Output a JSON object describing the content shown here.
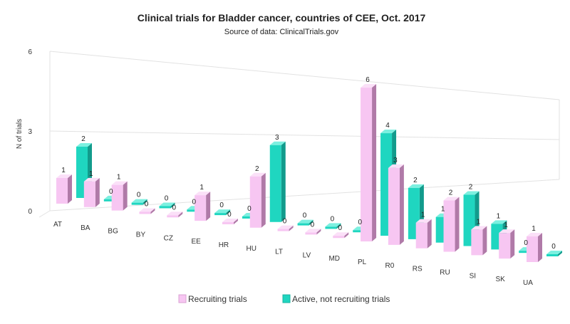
{
  "chart_data": {
    "type": "bar",
    "title": "Clinical trials for Bladder cancer, countries of CEE, Oct. 2017",
    "subtitle": "Source of data: ClinicalTrials.gov",
    "ylabel": "N of trials",
    "xlabel": "",
    "ylim": [
      0,
      6
    ],
    "yticks": [
      0,
      3,
      6
    ],
    "grid": true,
    "legend_position": "bottom",
    "categories": [
      "AT",
      "BA",
      "BG",
      "BY",
      "CZ",
      "EE",
      "HR",
      "HU",
      "LT",
      "LV",
      "MD",
      "PL",
      "R0",
      "RS",
      "RU",
      "SI",
      "SK",
      "UA"
    ],
    "series": [
      {
        "name": "Recruiting trials",
        "color": "#f7c6f2",
        "side_color": "#b07aa8",
        "top_color": "#fbe0f8",
        "values": [
          1,
          1,
          1,
          0,
          0,
          1,
          0,
          2,
          0,
          0,
          0,
          6,
          3,
          1,
          2,
          1,
          1,
          1
        ]
      },
      {
        "name": "Active, not recruiting trials",
        "color": "#1fd6c0",
        "side_color": "#129b8c",
        "top_color": "#7cf0e0",
        "values": [
          2,
          0,
          0,
          0,
          0,
          0,
          0,
          3,
          0,
          0,
          0,
          4,
          2,
          1,
          2,
          1,
          0,
          0
        ]
      }
    ],
    "highlight_label_color": "#cc0000",
    "highlight_category": "UA"
  }
}
